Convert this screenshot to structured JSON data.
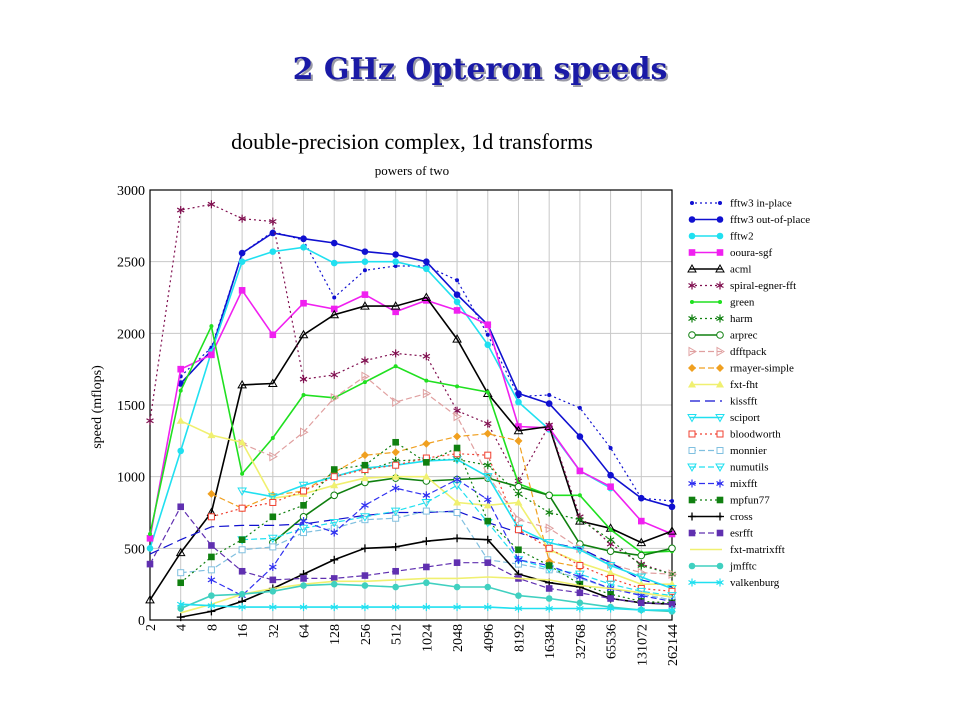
{
  "slide": {
    "title": "2 GHz Opteron speeds"
  },
  "chart_data": {
    "type": "line",
    "title": "double-precision complex, 1d transforms",
    "subtitle": "powers of two",
    "xlabel": "",
    "ylabel": "speed (mflops)",
    "ylim": [
      0,
      3000
    ],
    "yticks": [
      0,
      500,
      1000,
      1500,
      2000,
      2500,
      3000
    ],
    "categories": [
      "2",
      "4",
      "8",
      "16",
      "32",
      "64",
      "128",
      "256",
      "512",
      "1024",
      "2048",
      "4096",
      "8192",
      "16384",
      "32768",
      "65536",
      "131072",
      "262144"
    ],
    "grid": true,
    "legend_position": "right",
    "series": [
      {
        "name": "fftw3 in-place",
        "color": "#1010d0",
        "dash": "2,3",
        "marker": "dot",
        "values": [
          null,
          1700,
          1900,
          2560,
          2710,
          2650,
          2250,
          2440,
          2470,
          2470,
          2370,
          1990,
          1560,
          1570,
          1480,
          1200,
          850,
          830
        ]
      },
      {
        "name": "fftw3 out-of-place",
        "color": "#1010d0",
        "dash": "",
        "marker": "circle",
        "values": [
          null,
          1650,
          1880,
          2560,
          2700,
          2660,
          2630,
          2570,
          2550,
          2500,
          2270,
          2060,
          1580,
          1510,
          1280,
          1010,
          850,
          790
        ]
      },
      {
        "name": "fftw2",
        "color": "#20e0f0",
        "dash": "",
        "marker": "circle",
        "values": [
          500,
          1180,
          1870,
          2500,
          2570,
          2600,
          2490,
          2500,
          2500,
          2450,
          2220,
          1920,
          1520,
          1330,
          1040,
          920,
          null,
          null
        ]
      },
      {
        "name": "ooura-sgf",
        "color": "#f020f0",
        "dash": "",
        "marker": "square",
        "values": [
          570,
          1750,
          1850,
          2300,
          1990,
          2210,
          2170,
          2270,
          2150,
          2230,
          2160,
          2060,
          1350,
          1340,
          1040,
          930,
          690,
          600
        ]
      },
      {
        "name": "acml",
        "color": "#000000",
        "dash": "",
        "marker": "triangle-open",
        "values": [
          140,
          470,
          750,
          1640,
          1650,
          1990,
          2130,
          2190,
          2190,
          2250,
          1960,
          1580,
          1320,
          1350,
          690,
          640,
          540,
          620
        ]
      },
      {
        "name": "spiral-egner-fft",
        "color": "#801050",
        "dash": "2,3",
        "marker": "asterisk",
        "values": [
          1390,
          2860,
          2900,
          2800,
          2780,
          1680,
          1710,
          1810,
          1860,
          1840,
          1460,
          1370,
          970,
          1360,
          720,
          530,
          390,
          320
        ]
      },
      {
        "name": "green",
        "color": "#20e020",
        "dash": "",
        "marker": "dot",
        "values": [
          600,
          1600,
          2050,
          1020,
          1270,
          1570,
          1550,
          1660,
          1770,
          1670,
          1630,
          1590,
          950,
          870,
          870,
          630,
          470,
          480
        ]
      },
      {
        "name": "harm",
        "color": "#108010",
        "dash": "2,3",
        "marker": "asterisk",
        "values": [
          null,
          null,
          null,
          null,
          null,
          null,
          null,
          1040,
          1110,
          1120,
          1120,
          1080,
          880,
          750,
          700,
          560,
          380,
          320
        ]
      },
      {
        "name": "arprec",
        "color": "#108010",
        "dash": "",
        "marker": "circle-open",
        "values": [
          null,
          null,
          null,
          null,
          540,
          720,
          870,
          960,
          990,
          970,
          980,
          990,
          930,
          870,
          530,
          480,
          450,
          500
        ]
      },
      {
        "name": "dfftpack",
        "color": "#e0a0a0",
        "dash": "6,3",
        "marker": "triangle-right-open",
        "values": [
          null,
          null,
          null,
          1230,
          1140,
          1310,
          1550,
          1700,
          1520,
          1580,
          1420,
          1010,
          700,
          640,
          500,
          390,
          330,
          320
        ]
      },
      {
        "name": "rmayer-simple",
        "color": "#f0a020",
        "dash": "6,3",
        "marker": "diamond",
        "values": [
          null,
          null,
          880,
          780,
          870,
          900,
          1030,
          1150,
          1170,
          1230,
          1280,
          1300,
          1250,
          410,
          370,
          null,
          null,
          null
        ]
      },
      {
        "name": "fxt-fht",
        "color": "#f0f070",
        "dash": "",
        "marker": "triangle",
        "values": [
          null,
          1390,
          1290,
          1240,
          850,
          880,
          940,
          990,
          1000,
          1000,
          820,
          800,
          820,
          490,
          400,
          330,
          250,
          250
        ]
      },
      {
        "name": "kissfft",
        "color": "#1010d0",
        "dash": "10,5",
        "marker": "none",
        "values": [
          460,
          560,
          650,
          660,
          660,
          670,
          700,
          730,
          750,
          750,
          760,
          680,
          610,
          540,
          500,
          400,
          280,
          230
        ]
      },
      {
        "name": "sciport",
        "color": "#20e0f0",
        "dash": "",
        "marker": "triangle-down-open",
        "values": [
          null,
          null,
          null,
          900,
          860,
          940,
          1000,
          1060,
          1080,
          1110,
          1120,
          1000,
          640,
          540,
          490,
          380,
          300,
          220
        ]
      },
      {
        "name": "bloodworth",
        "color": "#f04030",
        "dash": "2,3",
        "marker": "square-open",
        "values": [
          null,
          null,
          720,
          780,
          820,
          900,
          1000,
          1050,
          1080,
          1130,
          1160,
          1150,
          630,
          500,
          380,
          290,
          220,
          200
        ]
      },
      {
        "name": "monnier",
        "color": "#80c0e0",
        "dash": "6,3",
        "marker": "square-open",
        "values": [
          null,
          330,
          350,
          490,
          510,
          610,
          640,
          700,
          710,
          760,
          750,
          420,
          390,
          350,
          290,
          220,
          180,
          140
        ]
      },
      {
        "name": "numutils",
        "color": "#20e0f0",
        "dash": "6,3",
        "marker": "triangle-down-open",
        "values": [
          null,
          null,
          null,
          560,
          570,
          640,
          680,
          720,
          760,
          820,
          940,
          680,
          420,
          360,
          320,
          250,
          200,
          170
        ]
      },
      {
        "name": "mixfft",
        "color": "#3030f0",
        "dash": "6,3",
        "marker": "asterisk",
        "values": [
          null,
          null,
          280,
          170,
          370,
          690,
          610,
          800,
          920,
          870,
          980,
          840,
          420,
          380,
          300,
          220,
          170,
          130
        ]
      },
      {
        "name": "mpfun77",
        "color": "#108010",
        "dash": "2,3",
        "marker": "square",
        "values": [
          null,
          260,
          440,
          560,
          720,
          800,
          1050,
          1080,
          1240,
          1100,
          1200,
          690,
          490,
          380,
          250,
          180,
          130,
          120
        ]
      },
      {
        "name": "cross",
        "color": "#000000",
        "dash": "",
        "marker": "plus",
        "values": [
          null,
          20,
          60,
          130,
          220,
          320,
          420,
          500,
          510,
          550,
          570,
          560,
          320,
          260,
          230,
          150,
          120,
          110
        ]
      },
      {
        "name": "esrfft",
        "color": "#6030b0",
        "dash": "6,3",
        "marker": "square",
        "values": [
          390,
          790,
          520,
          340,
          280,
          290,
          290,
          310,
          340,
          370,
          400,
          400,
          290,
          220,
          190,
          150,
          120,
          110
        ]
      },
      {
        "name": "fxt-matrixfft",
        "color": "#f0f070",
        "dash": "",
        "marker": "none",
        "values": [
          null,
          50,
          110,
          180,
          220,
          250,
          270,
          270,
          280,
          290,
          290,
          300,
          290,
          280,
          240,
          220,
          190,
          160
        ]
      },
      {
        "name": "jmfftc",
        "color": "#40d0c0",
        "dash": "",
        "marker": "circle",
        "values": [
          null,
          80,
          170,
          180,
          200,
          240,
          250,
          240,
          230,
          260,
          230,
          230,
          170,
          150,
          120,
          90,
          70,
          60
        ]
      },
      {
        "name": "valkenburg",
        "color": "#20e0f0",
        "dash": "",
        "marker": "asterisk",
        "values": [
          null,
          110,
          100,
          90,
          90,
          90,
          90,
          90,
          90,
          90,
          90,
          90,
          80,
          80,
          80,
          80,
          70,
          70
        ]
      }
    ]
  }
}
